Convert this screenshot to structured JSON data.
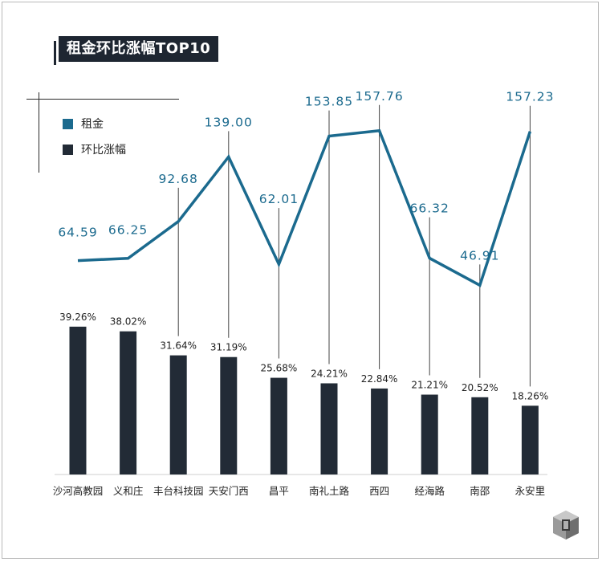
{
  "title": "租金环比涨幅TOP10",
  "colors": {
    "line": "#1b6a8e",
    "bar": "#222b36",
    "title_bg": "#1e2631"
  },
  "legend": [
    {
      "label": "租金",
      "color": "#1b6a8e"
    },
    {
      "label": "环比涨幅",
      "color": "#222b36"
    }
  ],
  "chart_data": {
    "type": "bar+line",
    "categories": [
      "沙河高教园",
      "义和庄",
      "丰台科技园",
      "天安门西",
      "昌平",
      "南礼土路",
      "西四",
      "经海路",
      "南邵",
      "永安里"
    ],
    "series": [
      {
        "name": "租金",
        "type": "line",
        "values": [
          64.59,
          66.25,
          92.68,
          139.0,
          62.01,
          153.85,
          157.76,
          66.32,
          46.91,
          157.23
        ],
        "labels": [
          "64.59",
          "66.25",
          "92.68",
          "139.00",
          "62.01",
          "153.85",
          "157.76",
          "66.32",
          "46.91",
          "157.23"
        ]
      },
      {
        "name": "环比涨幅",
        "type": "bar",
        "values": [
          39.26,
          38.02,
          31.64,
          31.19,
          25.68,
          24.21,
          22.84,
          21.21,
          20.52,
          18.26
        ],
        "labels": [
          "39.26%",
          "38.02%",
          "31.64%",
          "31.19%",
          "25.68%",
          "24.21%",
          "22.84%",
          "21.21%",
          "20.52%",
          "18.26%"
        ]
      }
    ]
  }
}
